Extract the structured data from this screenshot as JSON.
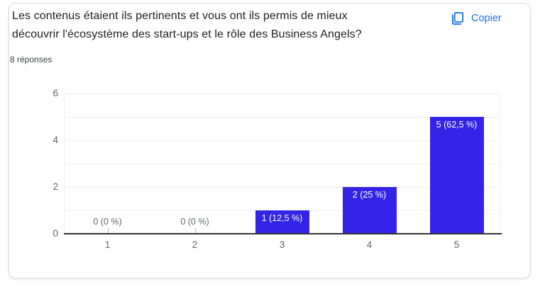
{
  "card": {
    "title_lines": [
      "Les contenus étaient ils pertinents et vous ont ils permis de mieux",
      "découvrir l'écosystème des start-ups et le rôle des Business Angels?"
    ],
    "responses_label": "8 réponses",
    "copy_label": "Copier"
  },
  "colors": {
    "bar": "#3324e8",
    "accent": "#1a73e8",
    "axis_text": "#5f6368",
    "gridline": "#efefef",
    "baseline": "#333333"
  },
  "chart_data": {
    "type": "bar",
    "title": "Les contenus étaient ils pertinents et vous ont ils permis de mieux découvrir l'écosystème des start-ups et le rôle des Business Angels?",
    "subtitle": "8 réponses",
    "categories": [
      "1",
      "2",
      "3",
      "4",
      "5"
    ],
    "values": [
      0,
      0,
      1,
      2,
      5
    ],
    "bar_labels": [
      "0 (0 %)",
      "0 (0 %)",
      "1 (12,5 %)",
      "2 (25 %)",
      "5 (62,5 %)"
    ],
    "xlabel": "",
    "ylabel": "",
    "ylim": [
      0,
      6
    ],
    "yticks": [
      0,
      2,
      4,
      6
    ],
    "grid": true,
    "legend": "none",
    "bar_color": "#3324e8"
  }
}
